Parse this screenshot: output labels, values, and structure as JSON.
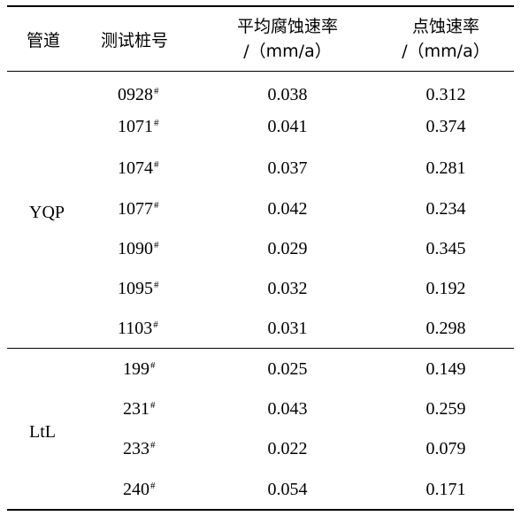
{
  "table": {
    "headers": {
      "pipeline": "管道",
      "pile": "测试桩号",
      "avg_rate_line1": "平均腐蚀速率",
      "avg_rate_line2": "/（mm/a）",
      "pit_rate_line1": "点蚀速率",
      "pit_rate_line2": "/（mm/a）"
    },
    "groups": [
      {
        "name": "YQP",
        "rows": [
          {
            "pile": "0928",
            "mark": "#",
            "avg": "0.038",
            "pit": "0.312"
          },
          {
            "pile": "1071",
            "mark": "#",
            "avg": "0.041",
            "pit": "0.374"
          },
          {
            "pile": "1074",
            "mark": "#",
            "avg": "0.037",
            "pit": "0.281"
          },
          {
            "pile": "1077",
            "mark": "#",
            "avg": "0.042",
            "pit": "0.234"
          },
          {
            "pile": "1090",
            "mark": "#",
            "avg": "0.029",
            "pit": "0.345"
          },
          {
            "pile": "1095",
            "mark": "#",
            "avg": "0.032",
            "pit": "0.192"
          },
          {
            "pile": "1103",
            "mark": "#",
            "avg": "0.031",
            "pit": "0.298"
          }
        ]
      },
      {
        "name": "LtL",
        "rows": [
          {
            "pile": "199",
            "mark": "#",
            "avg": "0.025",
            "pit": "0.149"
          },
          {
            "pile": "231",
            "mark": "#",
            "avg": "0.043",
            "pit": "0.259"
          },
          {
            "pile": "233",
            "mark": "#",
            "avg": "0.022",
            "pit": "0.079"
          },
          {
            "pile": "240",
            "mark": "#",
            "avg": "0.054",
            "pit": "0.171"
          }
        ]
      }
    ]
  }
}
